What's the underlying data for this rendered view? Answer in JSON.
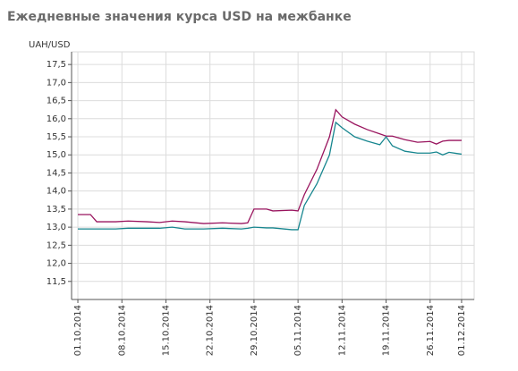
{
  "chart_data": {
    "type": "line",
    "title": "Ежедневные значения курса USD на межбанке",
    "y_label": "UAH/USD",
    "x": [
      "01.10.2014",
      "03.10.2014",
      "04.10.2014",
      "07.10.2014",
      "09.10.2014",
      "12.10.2014",
      "14.10.2014",
      "16.10.2014",
      "18.10.2014",
      "21.10.2014",
      "24.10.2014",
      "27.10.2014",
      "28.10.2014",
      "29.10.2014",
      "31.10.2014",
      "01.11.2014",
      "04.11.2014",
      "05.11.2014",
      "06.11.2014",
      "08.11.2014",
      "10.11.2014",
      "11.11.2014",
      "12.11.2014",
      "14.11.2014",
      "16.11.2014",
      "18.11.2014",
      "19.11.2014",
      "20.11.2014",
      "22.11.2014",
      "24.11.2014",
      "26.11.2014",
      "27.11.2014",
      "28.11.2014",
      "29.11.2014",
      "01.12.2014"
    ],
    "series": [
      {
        "color": "#99145e",
        "values": [
          13.35,
          13.35,
          13.15,
          13.15,
          13.17,
          13.15,
          13.13,
          13.17,
          13.15,
          13.1,
          13.12,
          13.1,
          13.12,
          13.5,
          13.5,
          13.45,
          13.47,
          13.45,
          13.9,
          14.6,
          15.5,
          16.25,
          16.05,
          15.85,
          15.7,
          15.58,
          15.52,
          15.52,
          15.42,
          15.35,
          15.37,
          15.3,
          15.38,
          15.4,
          15.4
        ]
      },
      {
        "color": "#17868f",
        "values": [
          12.95,
          12.95,
          12.95,
          12.95,
          12.97,
          12.97,
          12.97,
          13.0,
          12.95,
          12.95,
          12.97,
          12.95,
          12.97,
          13.0,
          12.98,
          12.98,
          12.93,
          12.93,
          13.6,
          14.2,
          15.0,
          15.9,
          15.75,
          15.5,
          15.38,
          15.28,
          15.5,
          15.25,
          15.1,
          15.05,
          15.05,
          15.08,
          15.0,
          15.07,
          15.02
        ]
      }
    ],
    "xlim": [
      "30.09.2014",
      "03.12.2014"
    ],
    "xticks": [
      "01.10.2014",
      "08.10.2014",
      "15.10.2014",
      "22.10.2014",
      "29.10.2014",
      "05.11.2014",
      "12.11.2014",
      "19.11.2014",
      "26.11.2014",
      "01.12.2014"
    ],
    "ylim": [
      11.0,
      17.85
    ],
    "yticks": [
      {
        "value": 11.5,
        "label": "11,5"
      },
      {
        "value": 12.0,
        "label": "12,0"
      },
      {
        "value": 12.5,
        "label": "12,5"
      },
      {
        "value": 13.0,
        "label": "13,0"
      },
      {
        "value": 13.5,
        "label": "13,5"
      },
      {
        "value": 14.0,
        "label": "14,0"
      },
      {
        "value": 14.5,
        "label": "14,5"
      },
      {
        "value": 15.0,
        "label": "15,0"
      },
      {
        "value": 15.5,
        "label": "15,5"
      },
      {
        "value": 16.0,
        "label": "16,0"
      },
      {
        "value": 16.5,
        "label": "16,5"
      },
      {
        "value": 17.0,
        "label": "17,0"
      },
      {
        "value": 17.5,
        "label": "17,5"
      }
    ],
    "grid": true
  }
}
